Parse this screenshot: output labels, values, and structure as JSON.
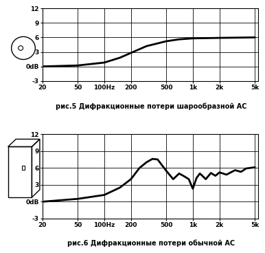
{
  "chart_data": [
    {
      "type": "line",
      "title": "рис.5 Дифракционные потери шарообразной АС",
      "x": [
        20,
        50,
        100,
        150,
        200,
        300,
        500,
        700,
        1000,
        2000,
        5000
      ],
      "values": [
        0,
        0.2,
        0.8,
        1.8,
        2.8,
        4.2,
        5.2,
        5.6,
        5.8,
        5.9,
        6.0
      ],
      "color": "#000000",
      "log": "x",
      "grid": true,
      "xlim": [
        20,
        5500
      ],
      "ylim": [
        -3,
        12
      ],
      "xticks": [
        20,
        50,
        {
          "value": 100,
          "label": "100Hz"
        },
        200,
        500,
        {
          "value": 1000,
          "label": "1k"
        },
        {
          "value": 2000,
          "label": "2k"
        },
        {
          "value": 5000,
          "label": "5k"
        }
      ],
      "yticks": [
        -3,
        {
          "value": 0,
          "label": "0dB"
        },
        3,
        6,
        9,
        12
      ]
    },
    {
      "type": "line",
      "title": "рис.6 Дифракционные потери обычной АС",
      "x": [
        20,
        50,
        100,
        150,
        200,
        250,
        300,
        350,
        400,
        500,
        600,
        700,
        800,
        900,
        1000,
        1100,
        1200,
        1300,
        1400,
        1600,
        1800,
        2000,
        2400,
        3000,
        3500,
        4000,
        5000
      ],
      "values": [
        0,
        0.5,
        1.2,
        2.5,
        4.0,
        6.0,
        7.0,
        7.6,
        7.5,
        5.5,
        4.0,
        5.0,
        4.5,
        4.0,
        2.3,
        4.2,
        5.0,
        4.5,
        4.0,
        5.1,
        4.6,
        5.2,
        4.8,
        5.6,
        5.3,
        5.9,
        6.1
      ],
      "color": "#000000",
      "log": "x",
      "grid": true,
      "xlim": [
        20,
        5500
      ],
      "ylim": [
        -3,
        12
      ],
      "xticks": [
        20,
        50,
        {
          "value": 100,
          "label": "100Hz"
        },
        200,
        500,
        {
          "value": 1000,
          "label": "1k"
        },
        {
          "value": 2000,
          "label": "2k"
        },
        {
          "value": 5000,
          "label": "5k"
        }
      ],
      "yticks": [
        -3,
        {
          "value": 0,
          "label": "0dB"
        },
        3,
        6,
        9,
        12
      ]
    }
  ]
}
